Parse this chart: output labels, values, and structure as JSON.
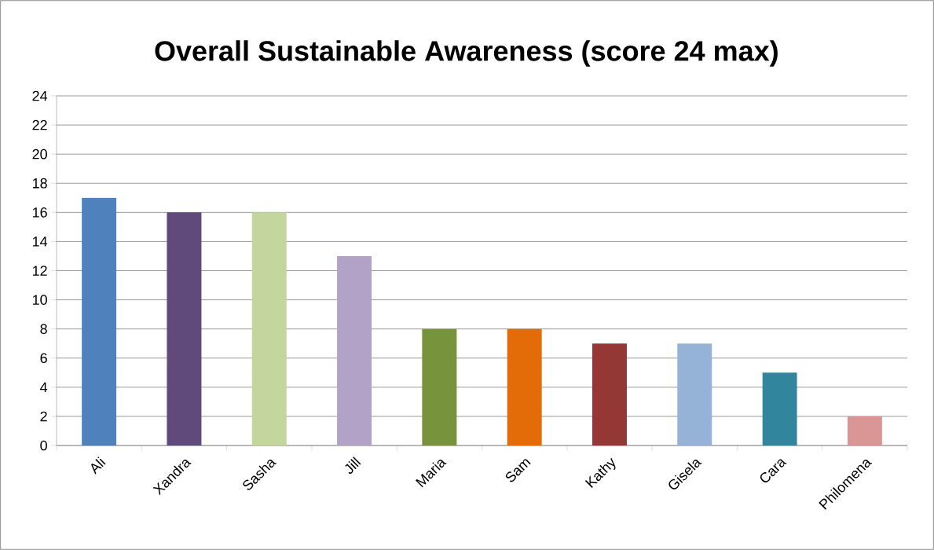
{
  "chart_data": {
    "type": "bar",
    "title": "Overall Sustainable Awareness (score 24 max)",
    "categories": [
      "Ali",
      "Xandra",
      "Sasha",
      "Jill",
      "Maria",
      "Sam",
      "Kathy",
      "Gisela",
      "Cara",
      "Philomena"
    ],
    "values": [
      17,
      16,
      16,
      13,
      8,
      8,
      7,
      7,
      5,
      2
    ],
    "colors": [
      "#4f81bd",
      "#604a7b",
      "#c3d69b",
      "#b3a2c7",
      "#77933c",
      "#e36c09",
      "#953735",
      "#95b3d7",
      "#31859c",
      "#d99694"
    ],
    "ylim": [
      0,
      24
    ],
    "yticks": [
      0,
      2,
      4,
      6,
      8,
      10,
      12,
      14,
      16,
      18,
      20,
      22,
      24
    ],
    "grid": "y"
  }
}
